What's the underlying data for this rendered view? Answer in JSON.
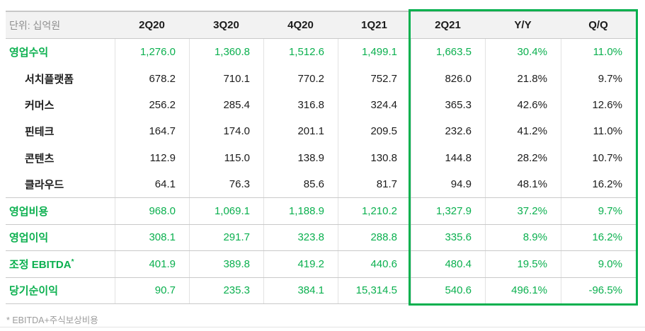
{
  "colors": {
    "green_text": "#0bb04f",
    "green_border": "#04b04e",
    "header_bg": "#f2f2f2",
    "top_rule": "#c8c8c8",
    "separator": "#c9c9c9",
    "divider": "#e2e2e2",
    "gray_text": "#8e8e8e",
    "footnote_gray": "#9c9c9c",
    "bottom_rule": "#e4e4e4"
  },
  "chart_data": {
    "type": "table",
    "unit": "단위: 십억원",
    "columns": [
      "2Q20",
      "3Q20",
      "4Q20",
      "1Q21",
      "2Q21",
      "Y/Y",
      "Q/Q"
    ],
    "highlight": {
      "columns": [
        "2Q21",
        "Y/Y",
        "Q/Q"
      ],
      "style": "green-outline"
    },
    "rows": [
      {
        "label": "영업수익",
        "emphasis": "green",
        "indent": false,
        "cells": [
          "1,276.0",
          "1,360.8",
          "1,512.6",
          "1,499.1",
          "1,663.5",
          "30.4%",
          "11.0%"
        ]
      },
      {
        "label": "서치플랫폼",
        "emphasis": "none",
        "indent": true,
        "cells": [
          "678.2",
          "710.1",
          "770.2",
          "752.7",
          "826.0",
          "21.8%",
          "9.7%"
        ]
      },
      {
        "label": "커머스",
        "emphasis": "none",
        "indent": true,
        "cells": [
          "256.2",
          "285.4",
          "316.8",
          "324.4",
          "365.3",
          "42.6%",
          "12.6%"
        ]
      },
      {
        "label": "핀테크",
        "emphasis": "none",
        "indent": true,
        "cells": [
          "164.7",
          "174.0",
          "201.1",
          "209.5",
          "232.6",
          "41.2%",
          "11.0%"
        ]
      },
      {
        "label": "콘텐츠",
        "emphasis": "none",
        "indent": true,
        "cells": [
          "112.9",
          "115.0",
          "138.9",
          "130.8",
          "144.8",
          "28.2%",
          "10.7%"
        ]
      },
      {
        "label": "클라우드",
        "emphasis": "none",
        "indent": true,
        "cells": [
          "64.1",
          "76.3",
          "85.6",
          "81.7",
          "94.9",
          "48.1%",
          "16.2%"
        ]
      },
      {
        "label": "영업비용",
        "emphasis": "green",
        "indent": false,
        "cells": [
          "968.0",
          "1,069.1",
          "1,188.9",
          "1,210.2",
          "1,327.9",
          "37.2%",
          "9.7%"
        ]
      },
      {
        "label": "영업이익",
        "emphasis": "green",
        "indent": false,
        "cells": [
          "308.1",
          "291.7",
          "323.8",
          "288.8",
          "335.6",
          "8.9%",
          "16.2%"
        ]
      },
      {
        "label": "조정 EBITDA",
        "sup": "*",
        "emphasis": "green",
        "indent": false,
        "cells": [
          "401.9",
          "389.8",
          "419.2",
          "440.6",
          "480.4",
          "19.5%",
          "9.0%"
        ]
      },
      {
        "label": "당기순이익",
        "emphasis": "green",
        "indent": false,
        "cells": [
          "90.7",
          "235.3",
          "384.1",
          "15,314.5",
          "540.6",
          "496.1%",
          "-96.5%"
        ]
      }
    ],
    "footnote": "* EBITDA+주식보상비용"
  }
}
